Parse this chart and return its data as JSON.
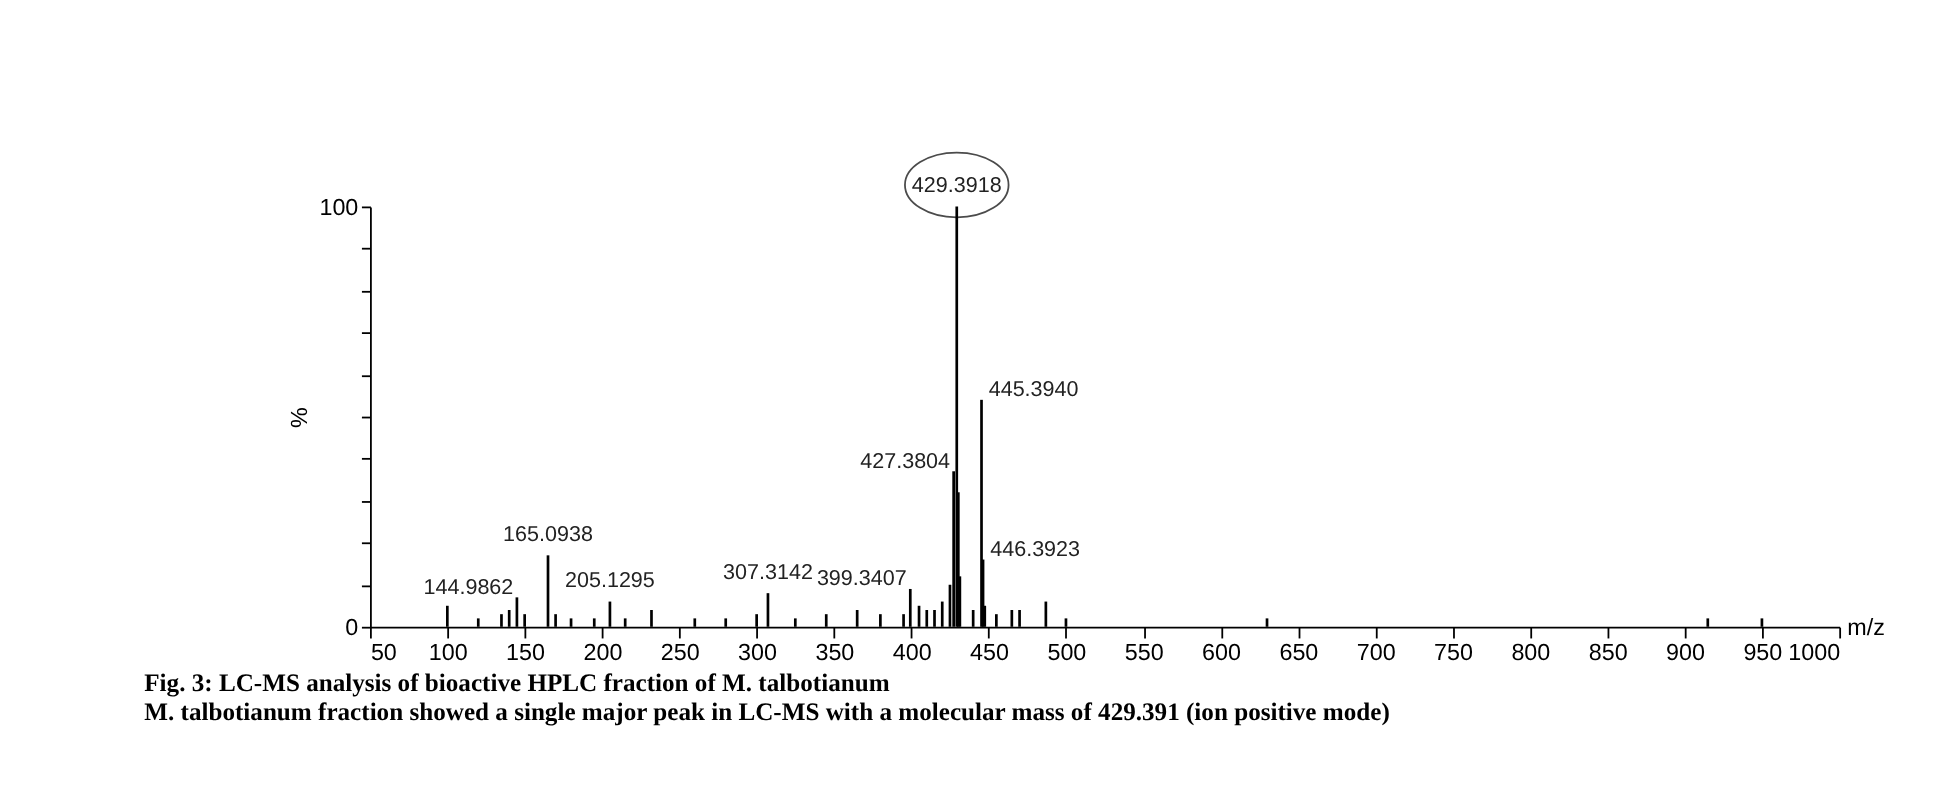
{
  "chart_data": {
    "type": "bar",
    "title": "Fig. 3: LC-MS analysis of bioactive HPLC fraction of M. talbotianum",
    "subtitle": "M. talbotianum fraction showed a single major peak in LC-MS with a molecular mass of 429.391 (ion positive mode)",
    "xlabel": "m/z",
    "ylabel": "%",
    "x": [
      100,
      120,
      135,
      140,
      144.9862,
      150,
      165.0938,
      170,
      180,
      195,
      205.1295,
      215,
      232,
      260,
      280,
      300,
      307.3142,
      325,
      345,
      365,
      380,
      395,
      399.3407,
      405,
      410,
      415,
      420,
      425,
      427.3804,
      429.3918,
      430.4,
      431.4,
      440,
      445.394,
      446.3923,
      447.5,
      455,
      465,
      470,
      487,
      500,
      630,
      915,
      950
    ],
    "values": [
      5,
      2,
      3,
      4,
      7,
      3,
      17,
      3,
      2,
      2,
      6,
      2,
      4,
      2,
      2,
      3,
      8,
      2,
      3,
      4,
      3,
      3,
      9,
      5,
      4,
      4,
      6,
      10,
      37,
      100,
      32,
      12,
      4,
      54,
      16,
      5,
      3,
      4,
      4,
      6,
      2,
      2,
      2,
      2
    ],
    "color": "#000000",
    "xlim": [
      50,
      1000
    ],
    "xticks": [
      50,
      100,
      150,
      200,
      250,
      300,
      350,
      400,
      450,
      500,
      550,
      600,
      650,
      700,
      750,
      800,
      850,
      900,
      950,
      1000
    ],
    "ylim": [
      0,
      100
    ],
    "yticks": [
      0,
      {
        "value": 10,
        "label": null
      },
      {
        "value": 20,
        "label": null
      },
      {
        "value": 30,
        "label": null
      },
      {
        "value": 40,
        "label": null
      },
      {
        "value": 50,
        "label": null
      },
      {
        "value": 60,
        "label": null
      },
      {
        "value": 70,
        "label": null
      },
      {
        "value": 80,
        "label": null
      },
      {
        "value": 90,
        "label": null
      },
      100
    ],
    "grid": false,
    "annotations": [
      {
        "text": "429.3918",
        "x": 429.3918,
        "y": 100
      },
      {
        "text": "445.3940",
        "x": 445.394,
        "y": 54
      },
      {
        "text": "427.3804",
        "x": 427.3804,
        "y": 37
      },
      {
        "text": "446.3923",
        "x": 446.3923,
        "y": 16
      },
      {
        "text": "399.3407",
        "x": 399.3407,
        "y": 9
      },
      {
        "text": "165.0938",
        "x": 165.0938,
        "y": 17
      },
      {
        "text": "144.9862",
        "x": 144.9862,
        "y": 7
      },
      {
        "text": "205.1295",
        "x": 205.1295,
        "y": 6
      },
      {
        "text": "307.3142",
        "x": 307.3142,
        "y": 8
      }
    ]
  }
}
